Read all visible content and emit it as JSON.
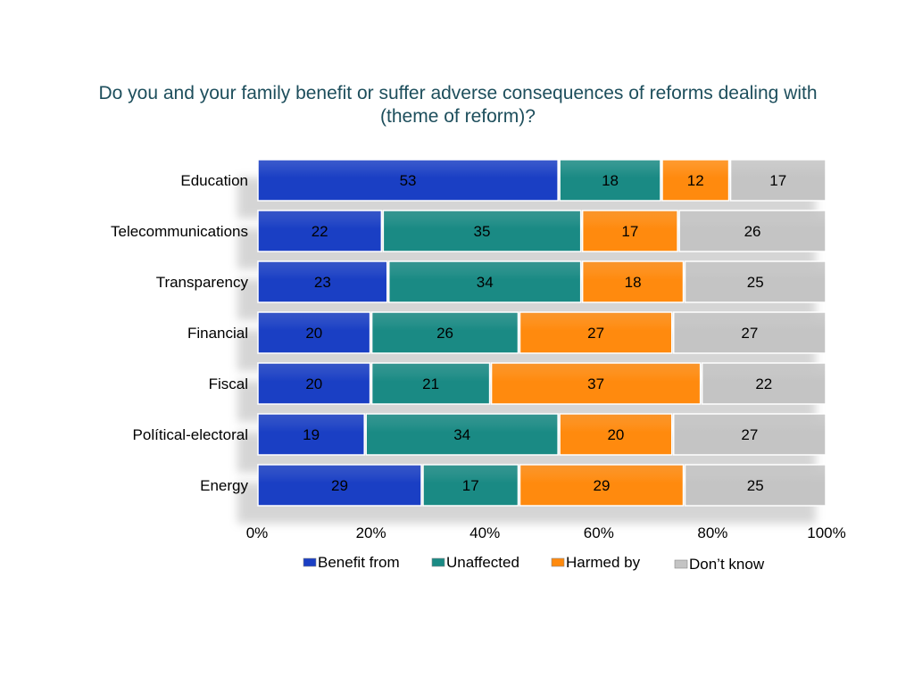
{
  "chart_data": {
    "type": "bar",
    "orientation": "horizontal",
    "stacked": "percent",
    "title": "Do you and your family benefit or suffer adverse consequences of reforms dealing with (theme of reform)?",
    "categories": [
      "Education",
      "Telecommunications",
      "Transparency",
      "Financial",
      "Fiscal",
      "Polítical-electoral",
      "Energy"
    ],
    "series": [
      {
        "name": "Benefit from",
        "color": "#1a3fc4",
        "values": [
          53,
          22,
          23,
          20,
          20,
          19,
          29
        ]
      },
      {
        "name": "Unaffected",
        "color": "#1a8a84",
        "values": [
          18,
          35,
          34,
          26,
          21,
          34,
          17
        ]
      },
      {
        "name": "Harmed by",
        "color": "#ff8a0e",
        "values": [
          12,
          17,
          18,
          27,
          37,
          20,
          29
        ]
      },
      {
        "name": "Don’t know",
        "color": "#c4c4c4",
        "values": [
          17,
          26,
          25,
          27,
          22,
          27,
          25
        ]
      }
    ],
    "xticks": [
      "0%",
      "20%",
      "40%",
      "60%",
      "80%",
      "100%"
    ],
    "xlim": [
      0,
      100
    ],
    "grid": false,
    "legend": "bottom"
  }
}
